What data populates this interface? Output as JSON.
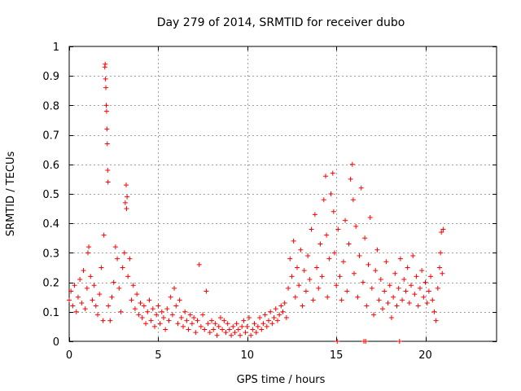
{
  "chart_data": {
    "type": "scatter",
    "title": "Day 279 of 2014, SRMTID for receiver dubo",
    "xlabel": "GPS time / hours",
    "ylabel": "SRMTID / TECUs",
    "xlim": [
      0,
      24
    ],
    "ylim": [
      0,
      1
    ],
    "xticks": [
      0,
      5,
      10,
      15,
      20
    ],
    "xtick_labels": [
      "0",
      "5",
      "10",
      "15",
      "20"
    ],
    "yticks": [
      0,
      0.1,
      0.2,
      0.3,
      0.4,
      0.5,
      0.6,
      0.7,
      0.8,
      0.9,
      1
    ],
    "ytick_labels": [
      "0",
      "0.1",
      "0.2",
      "0.3",
      "0.4",
      "0.5",
      "0.6",
      "0.7",
      "0.8",
      "0.9",
      "1"
    ],
    "grid": true,
    "marker": "+",
    "color": "#ff0000",
    "series": [
      {
        "name": "SRMTID",
        "points": [
          [
            0.0,
            0.14
          ],
          [
            0.1,
            0.17
          ],
          [
            0.2,
            0.12
          ],
          [
            0.3,
            0.19
          ],
          [
            0.4,
            0.1
          ],
          [
            0.5,
            0.15
          ],
          [
            0.6,
            0.21
          ],
          [
            0.7,
            0.13
          ],
          [
            0.8,
            0.24
          ],
          [
            0.9,
            0.11
          ],
          [
            1.0,
            0.18
          ],
          [
            1.05,
            0.3
          ],
          [
            1.1,
            0.32
          ],
          [
            1.2,
            0.22
          ],
          [
            1.3,
            0.14
          ],
          [
            1.4,
            0.19
          ],
          [
            1.5,
            0.12
          ],
          [
            1.6,
            0.09
          ],
          [
            1.7,
            0.16
          ],
          [
            1.8,
            0.25
          ],
          [
            1.9,
            0.07
          ],
          [
            1.95,
            0.36
          ],
          [
            2.0,
            0.93
          ],
          [
            2.02,
            0.94
          ],
          [
            2.04,
            0.89
          ],
          [
            2.06,
            0.86
          ],
          [
            2.08,
            0.8
          ],
          [
            2.1,
            0.78
          ],
          [
            2.12,
            0.72
          ],
          [
            2.14,
            0.67
          ],
          [
            2.16,
            0.58
          ],
          [
            2.18,
            0.54
          ],
          [
            2.2,
            0.12
          ],
          [
            2.3,
            0.07
          ],
          [
            2.4,
            0.15
          ],
          [
            2.5,
            0.2
          ],
          [
            2.6,
            0.32
          ],
          [
            2.7,
            0.28
          ],
          [
            2.8,
            0.18
          ],
          [
            2.9,
            0.1
          ],
          [
            3.0,
            0.25
          ],
          [
            3.1,
            0.3
          ],
          [
            3.15,
            0.47
          ],
          [
            3.2,
            0.53
          ],
          [
            3.22,
            0.45
          ],
          [
            3.25,
            0.49
          ],
          [
            3.3,
            0.22
          ],
          [
            3.4,
            0.28
          ],
          [
            3.5,
            0.14
          ],
          [
            3.6,
            0.19
          ],
          [
            3.7,
            0.11
          ],
          [
            3.8,
            0.16
          ],
          [
            3.9,
            0.09
          ],
          [
            4.0,
            0.13
          ],
          [
            4.1,
            0.08
          ],
          [
            4.2,
            0.12
          ],
          [
            4.3,
            0.06
          ],
          [
            4.4,
            0.1
          ],
          [
            4.5,
            0.14
          ],
          [
            4.6,
            0.07
          ],
          [
            4.7,
            0.11
          ],
          [
            4.8,
            0.05
          ],
          [
            4.9,
            0.09
          ],
          [
            5.0,
            0.12
          ],
          [
            5.1,
            0.06
          ],
          [
            5.2,
            0.1
          ],
          [
            5.3,
            0.08
          ],
          [
            5.4,
            0.04
          ],
          [
            5.5,
            0.11
          ],
          [
            5.6,
            0.07
          ],
          [
            5.7,
            0.15
          ],
          [
            5.8,
            0.09
          ],
          [
            5.9,
            0.18
          ],
          [
            6.0,
            0.12
          ],
          [
            6.1,
            0.06
          ],
          [
            6.2,
            0.14
          ],
          [
            6.3,
            0.08
          ],
          [
            6.4,
            0.05
          ],
          [
            6.5,
            0.1
          ],
          [
            6.6,
            0.07
          ],
          [
            6.7,
            0.04
          ],
          [
            6.8,
            0.09
          ],
          [
            6.9,
            0.06
          ],
          [
            7.0,
            0.08
          ],
          [
            7.1,
            0.03
          ],
          [
            7.2,
            0.07
          ],
          [
            7.3,
            0.26
          ],
          [
            7.4,
            0.05
          ],
          [
            7.5,
            0.09
          ],
          [
            7.6,
            0.04
          ],
          [
            7.7,
            0.17
          ],
          [
            7.8,
            0.06
          ],
          [
            7.9,
            0.03
          ],
          [
            8.0,
            0.07
          ],
          [
            8.1,
            0.04
          ],
          [
            8.2,
            0.06
          ],
          [
            8.3,
            0.02
          ],
          [
            8.4,
            0.05
          ],
          [
            8.5,
            0.08
          ],
          [
            8.6,
            0.04
          ],
          [
            8.7,
            0.07
          ],
          [
            8.8,
            0.03
          ],
          [
            8.9,
            0.06
          ],
          [
            9.0,
            0.04
          ],
          [
            9.1,
            0.02
          ],
          [
            9.2,
            0.05
          ],
          [
            9.3,
            0.03
          ],
          [
            9.4,
            0.06
          ],
          [
            9.5,
            0.04
          ],
          [
            9.6,
            0.02
          ],
          [
            9.7,
            0.05
          ],
          [
            9.8,
            0.07
          ],
          [
            9.9,
            0.03
          ],
          [
            10.0,
            0.05
          ],
          [
            10.1,
            0.08
          ],
          [
            10.2,
            0.02
          ],
          [
            10.3,
            0.04
          ],
          [
            10.4,
            0.06
          ],
          [
            10.5,
            0.03
          ],
          [
            10.6,
            0.05
          ],
          [
            10.7,
            0.08
          ],
          [
            10.8,
            0.04
          ],
          [
            10.9,
            0.06
          ],
          [
            11.0,
            0.09
          ],
          [
            11.1,
            0.05
          ],
          [
            11.2,
            0.07
          ],
          [
            11.3,
            0.1
          ],
          [
            11.4,
            0.06
          ],
          [
            11.5,
            0.08
          ],
          [
            11.6,
            0.11
          ],
          [
            11.7,
            0.07
          ],
          [
            11.8,
            0.09
          ],
          [
            11.9,
            0.12
          ],
          [
            12.0,
            0.1
          ],
          [
            12.1,
            0.13
          ],
          [
            12.2,
            0.08
          ],
          [
            12.3,
            0.18
          ],
          [
            12.4,
            0.28
          ],
          [
            12.5,
            0.22
          ],
          [
            12.6,
            0.34
          ],
          [
            12.7,
            0.15
          ],
          [
            12.8,
            0.25
          ],
          [
            12.9,
            0.19
          ],
          [
            13.0,
            0.31
          ],
          [
            13.1,
            0.12
          ],
          [
            13.2,
            0.24
          ],
          [
            13.3,
            0.17
          ],
          [
            13.4,
            0.29
          ],
          [
            13.5,
            0.21
          ],
          [
            13.6,
            0.38
          ],
          [
            13.7,
            0.14
          ],
          [
            13.8,
            0.43
          ],
          [
            13.9,
            0.25
          ],
          [
            14.0,
            0.18
          ],
          [
            14.1,
            0.33
          ],
          [
            14.2,
            0.22
          ],
          [
            14.3,
            0.48
          ],
          [
            14.4,
            0.56
          ],
          [
            14.45,
            0.36
          ],
          [
            14.5,
            0.15
          ],
          [
            14.6,
            0.28
          ],
          [
            14.7,
            0.5
          ],
          [
            14.8,
            0.57
          ],
          [
            14.85,
            0.44
          ],
          [
            14.9,
            0.3
          ],
          [
            15.0,
            0.19
          ],
          [
            15.1,
            0.38
          ],
          [
            15.2,
            0.22
          ],
          [
            15.3,
            0.14
          ],
          [
            15.4,
            0.27
          ],
          [
            15.5,
            0.41
          ],
          [
            15.6,
            0.17
          ],
          [
            15.7,
            0.33
          ],
          [
            15.8,
            0.55
          ],
          [
            15.9,
            0.6
          ],
          [
            15.95,
            0.48
          ],
          [
            16.0,
            0.23
          ],
          [
            16.1,
            0.39
          ],
          [
            16.2,
            0.15
          ],
          [
            16.3,
            0.29
          ],
          [
            16.4,
            0.52
          ],
          [
            16.5,
            0.2
          ],
          [
            16.6,
            0.35
          ],
          [
            16.7,
            0.12
          ],
          [
            16.8,
            0.26
          ],
          [
            16.9,
            0.42
          ],
          [
            17.0,
            0.18
          ],
          [
            17.1,
            0.09
          ],
          [
            17.2,
            0.24
          ],
          [
            17.3,
            0.31
          ],
          [
            17.4,
            0.14
          ],
          [
            17.5,
            0.21
          ],
          [
            17.6,
            0.11
          ],
          [
            17.7,
            0.17
          ],
          [
            17.8,
            0.27
          ],
          [
            17.9,
            0.13
          ],
          [
            18.0,
            0.19
          ],
          [
            18.1,
            0.08
          ],
          [
            18.2,
            0.15
          ],
          [
            18.3,
            0.23
          ],
          [
            18.4,
            0.12
          ],
          [
            18.5,
            0.18
          ],
          [
            18.6,
            0.28
          ],
          [
            18.7,
            0.14
          ],
          [
            18.8,
            0.21
          ],
          [
            18.9,
            0.17
          ],
          [
            19.0,
            0.25
          ],
          [
            19.1,
            0.13
          ],
          [
            19.2,
            0.19
          ],
          [
            19.3,
            0.29
          ],
          [
            19.4,
            0.16
          ],
          [
            19.5,
            0.22
          ],
          [
            19.6,
            0.12
          ],
          [
            19.7,
            0.18
          ],
          [
            19.8,
            0.24
          ],
          [
            19.9,
            0.15
          ],
          [
            20.0,
            0.2
          ],
          [
            20.1,
            0.13
          ],
          [
            20.2,
            0.17
          ],
          [
            20.3,
            0.22
          ],
          [
            20.4,
            0.14
          ],
          [
            20.5,
            0.1
          ],
          [
            20.6,
            0.07
          ],
          [
            20.7,
            0.18
          ],
          [
            20.8,
            0.25
          ],
          [
            20.85,
            0.3
          ],
          [
            20.9,
            0.37
          ],
          [
            20.95,
            0.23
          ],
          [
            21.0,
            0.38
          ],
          [
            15.05,
            0.0
          ],
          [
            16.55,
            0.0
          ],
          [
            16.65,
            0.0
          ],
          [
            18.55,
            0.0
          ]
        ]
      }
    ]
  }
}
